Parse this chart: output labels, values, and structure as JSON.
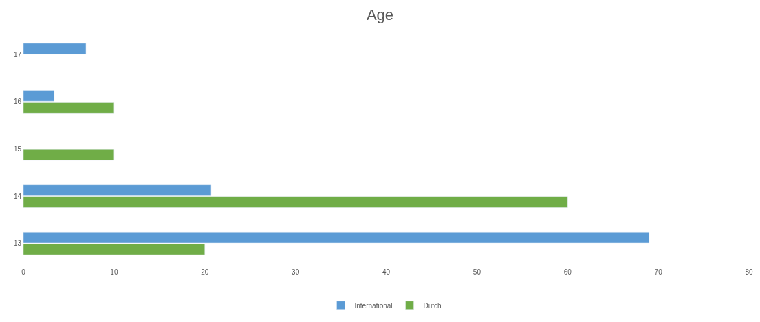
{
  "chart_data": {
    "type": "bar",
    "orientation": "horizontal",
    "title": "Age",
    "categories": [
      "17",
      "16",
      "15",
      "14",
      "13"
    ],
    "series": [
      {
        "name": "International",
        "color": "#5b9bd5",
        "values": [
          6.9,
          3.4,
          null,
          20.7,
          69.0
        ]
      },
      {
        "name": "Dutch",
        "color": "#70ad47",
        "values": [
          null,
          10,
          10,
          60,
          20
        ]
      }
    ],
    "xlim": [
      0,
      80
    ],
    "xticks": [
      0,
      10,
      20,
      30,
      40,
      50,
      60,
      70,
      80
    ],
    "grid": false,
    "legend": "bottom"
  }
}
